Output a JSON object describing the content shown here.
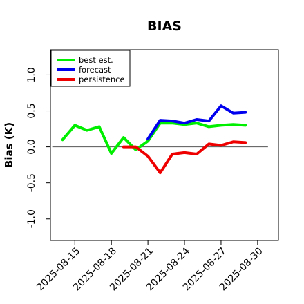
{
  "chart_data": {
    "type": "line",
    "title": "BIAS",
    "xlabel": "",
    "ylabel": "Bias (K)",
    "xlim": [
      "2025-08-13T00:00",
      "2025-08-31T17:00"
    ],
    "ylim": [
      -1.3,
      1.35
    ],
    "xticks": [
      "2025-08-15",
      "2025-08-18",
      "2025-08-21",
      "2025-08-24",
      "2025-08-27",
      "2025-08-30"
    ],
    "highlighted_xtick": "2025-08-21",
    "highlight_color": "#228b22",
    "yticks": [
      "-1.0",
      "-0.5",
      "0.0",
      "0.5",
      "1.0"
    ],
    "reference_line": 0.0,
    "legend_position": "top-left",
    "series": [
      {
        "name": "best est.",
        "color": "#00ee00",
        "x": [
          "2025-08-14",
          "2025-08-15",
          "2025-08-16",
          "2025-08-17",
          "2025-08-18",
          "2025-08-19",
          "2025-08-20",
          "2025-08-21",
          "2025-08-22",
          "2025-08-23",
          "2025-08-24",
          "2025-08-25",
          "2025-08-26",
          "2025-08-27",
          "2025-08-28",
          "2025-08-29"
        ],
        "values": [
          0.1,
          0.3,
          0.23,
          0.28,
          -0.09,
          0.13,
          -0.04,
          0.08,
          0.33,
          0.33,
          0.31,
          0.33,
          0.28,
          0.3,
          0.31,
          0.3
        ]
      },
      {
        "name": "forecast",
        "color": "#0000ee",
        "x": [
          "2025-08-21",
          "2025-08-22",
          "2025-08-23",
          "2025-08-24",
          "2025-08-25",
          "2025-08-26",
          "2025-08-27",
          "2025-08-28",
          "2025-08-29"
        ],
        "values": [
          0.11,
          0.37,
          0.36,
          0.33,
          0.38,
          0.36,
          0.57,
          0.47,
          0.48
        ]
      },
      {
        "name": "persistence",
        "color": "#ee0000",
        "x": [
          "2025-08-19",
          "2025-08-20",
          "2025-08-21",
          "2025-08-22",
          "2025-08-23",
          "2025-08-24",
          "2025-08-25",
          "2025-08-26",
          "2025-08-27",
          "2025-08-28",
          "2025-08-29"
        ],
        "values": [
          0.0,
          0.0,
          -0.13,
          -0.36,
          -0.1,
          -0.08,
          -0.1,
          0.04,
          0.02,
          0.07,
          0.06
        ]
      }
    ]
  }
}
